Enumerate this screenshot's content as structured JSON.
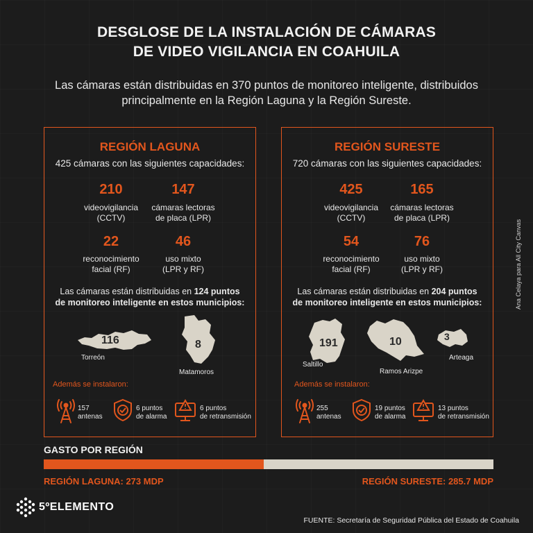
{
  "title": {
    "line1": "DESGLOSE DE LA INSTALACIÓN DE CÁMARAS",
    "line2": "DE VIDEO VIGILANCIA EN COAHUILA"
  },
  "subtitle": {
    "line1": "Las cámaras están distribuidas en 370 puntos de monitoreo inteligente, distribuidos",
    "line2": "principalmente en la Región Laguna y la Región Sureste."
  },
  "colors": {
    "accent": "#e2561d",
    "background": "#1c1c1c",
    "map_fill": "#d9d4c8"
  },
  "laguna": {
    "title": "REGIÓN LAGUNA",
    "desc": "425 cámaras con las siguientes capacidades:",
    "stats": [
      {
        "value": "210",
        "label1": "videovigilancia",
        "label2": "(CCTV)"
      },
      {
        "value": "147",
        "label1": "cámaras lectoras",
        "label2": "de placa (LPR)"
      },
      {
        "value": "22",
        "label1": "reconocimiento",
        "label2": "facial (RF)"
      },
      {
        "value": "46",
        "label1": "uso mixto",
        "label2": "(LPR y RF)"
      }
    ],
    "dist_pre": "Las cámaras están distribuidas en ",
    "dist_bold1": "124 puntos",
    "dist_bold2": "de monitoreo inteligente en estos municipios:",
    "municipios": [
      {
        "name": "Torreón",
        "value": "116"
      },
      {
        "name": "Matamoros",
        "value": "8"
      }
    ],
    "extra_label": "Además se instalaron:",
    "extras": [
      {
        "icon": "antenna-icon",
        "line1": "157",
        "line2": "antenas"
      },
      {
        "icon": "shield-check-icon",
        "line1": "6 puntos",
        "line2": "de alarma"
      },
      {
        "icon": "monitor-alert-icon",
        "line1": "6 puntos",
        "line2": "de retransmisión"
      }
    ]
  },
  "sureste": {
    "title": "REGIÓN SURESTE",
    "desc": "720 cámaras con las siguientes capacidades:",
    "stats": [
      {
        "value": "425",
        "label1": "videovigilancia",
        "label2": "(CCTV)"
      },
      {
        "value": "165",
        "label1": "cámaras lectoras",
        "label2": "de placa (LPR)"
      },
      {
        "value": "54",
        "label1": "reconocimiento",
        "label2": "facial (RF)"
      },
      {
        "value": "76",
        "label1": "uso mixto",
        "label2": "(LPR y RF)"
      }
    ],
    "dist_pre": "Las cámaras están distribuidas en ",
    "dist_bold1": "204 puntos",
    "dist_bold2": "de monitoreo inteligente en estos municipios:",
    "municipios": [
      {
        "name": "Saltillo",
        "value": "191"
      },
      {
        "name": "Ramos Arizpe",
        "value": "10"
      },
      {
        "name": "Arteaga",
        "value": "3"
      }
    ],
    "extra_label": "Además se instalaron:",
    "extras": [
      {
        "icon": "antenna-icon",
        "line1": "255",
        "line2": "antenas"
      },
      {
        "icon": "shield-check-icon",
        "line1": "19 puntos",
        "line2": "de alarma"
      },
      {
        "icon": "monitor-alert-icon",
        "line1": "13 puntos",
        "line2": "de retransmisión"
      }
    ]
  },
  "gasto": {
    "title": "GASTO POR REGIÓN",
    "laguna_label": "REGIÓN LAGUNA: 273 MDP",
    "sureste_label": "REGIÓN SURESTE: 285.7 MDP",
    "laguna_value": 273,
    "sureste_value": 285.7
  },
  "footer": {
    "logo": "5ºELEMENTO",
    "source": "FUENTE: Secretaría de Seguridad Pública del Estado de Coahuila",
    "credit": "Ana Celaya para All City Canvas"
  }
}
